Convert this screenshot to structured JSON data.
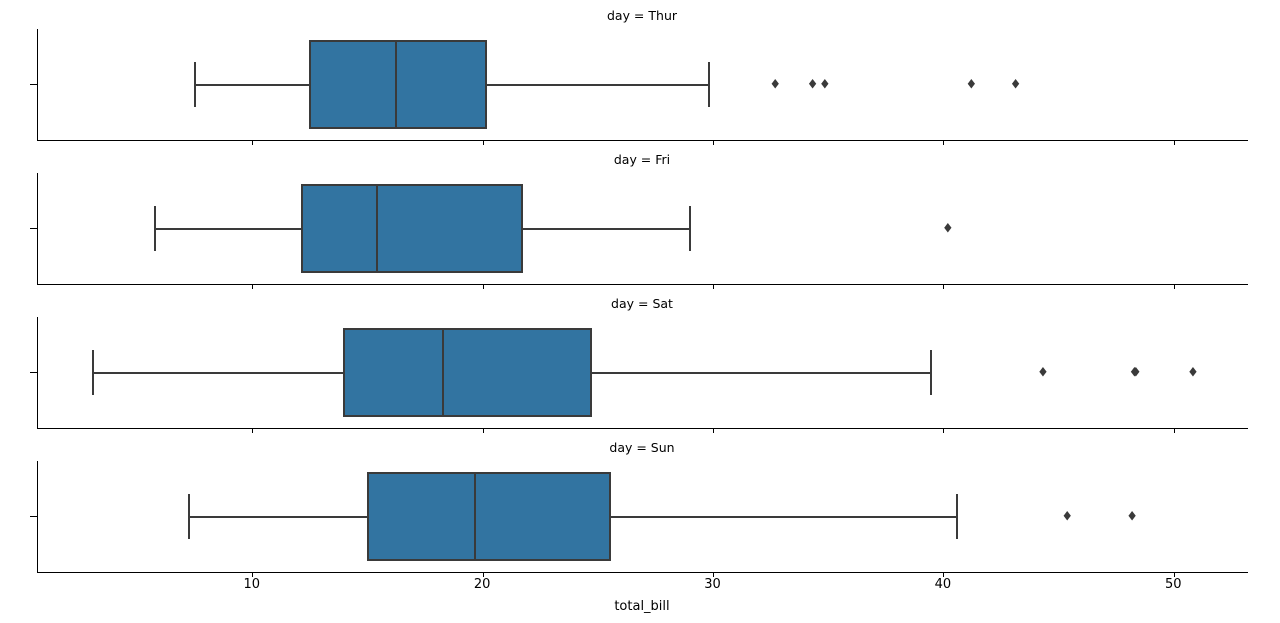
{
  "figure": {
    "background": "#ffffff"
  },
  "chart_data": {
    "type": "boxplot",
    "orientation": "horizontal",
    "facet_variable": "day",
    "x_variable": "total_bill",
    "xlabel": "total_bill",
    "xlim": [
      0.68,
      53.2
    ],
    "x_ticks": [
      10,
      20,
      30,
      40,
      50
    ],
    "grid": false,
    "facets": [
      {
        "title": "day = Thur",
        "day": "Thur",
        "whisker_low": 7.51,
        "q1": 12.44,
        "median": 16.2,
        "q3": 20.16,
        "whisker_high": 29.8,
        "outliers": [
          32.68,
          34.3,
          34.83,
          41.19,
          43.11
        ]
      },
      {
        "title": "day = Fri",
        "day": "Fri",
        "whisker_low": 5.75,
        "q1": 12.09,
        "median": 15.38,
        "q3": 21.75,
        "whisker_high": 28.97,
        "outliers": [
          40.17
        ]
      },
      {
        "title": "day = Sat",
        "day": "Sat",
        "whisker_low": 3.07,
        "q1": 13.9,
        "median": 18.24,
        "q3": 24.74,
        "whisker_high": 39.42,
        "outliers": [
          44.3,
          48.27,
          48.33,
          50.81
        ]
      },
      {
        "title": "day = Sun",
        "day": "Sun",
        "whisker_low": 7.25,
        "q1": 14.98,
        "median": 19.63,
        "q3": 25.56,
        "whisker_high": 40.55,
        "outliers": [
          45.35,
          48.17
        ]
      }
    ],
    "colors": {
      "box_fill": "#3274a1",
      "line": "#3a3a3a",
      "spine": "#000000",
      "text": "#000000",
      "outlier_marker": "diamond-icon"
    }
  }
}
